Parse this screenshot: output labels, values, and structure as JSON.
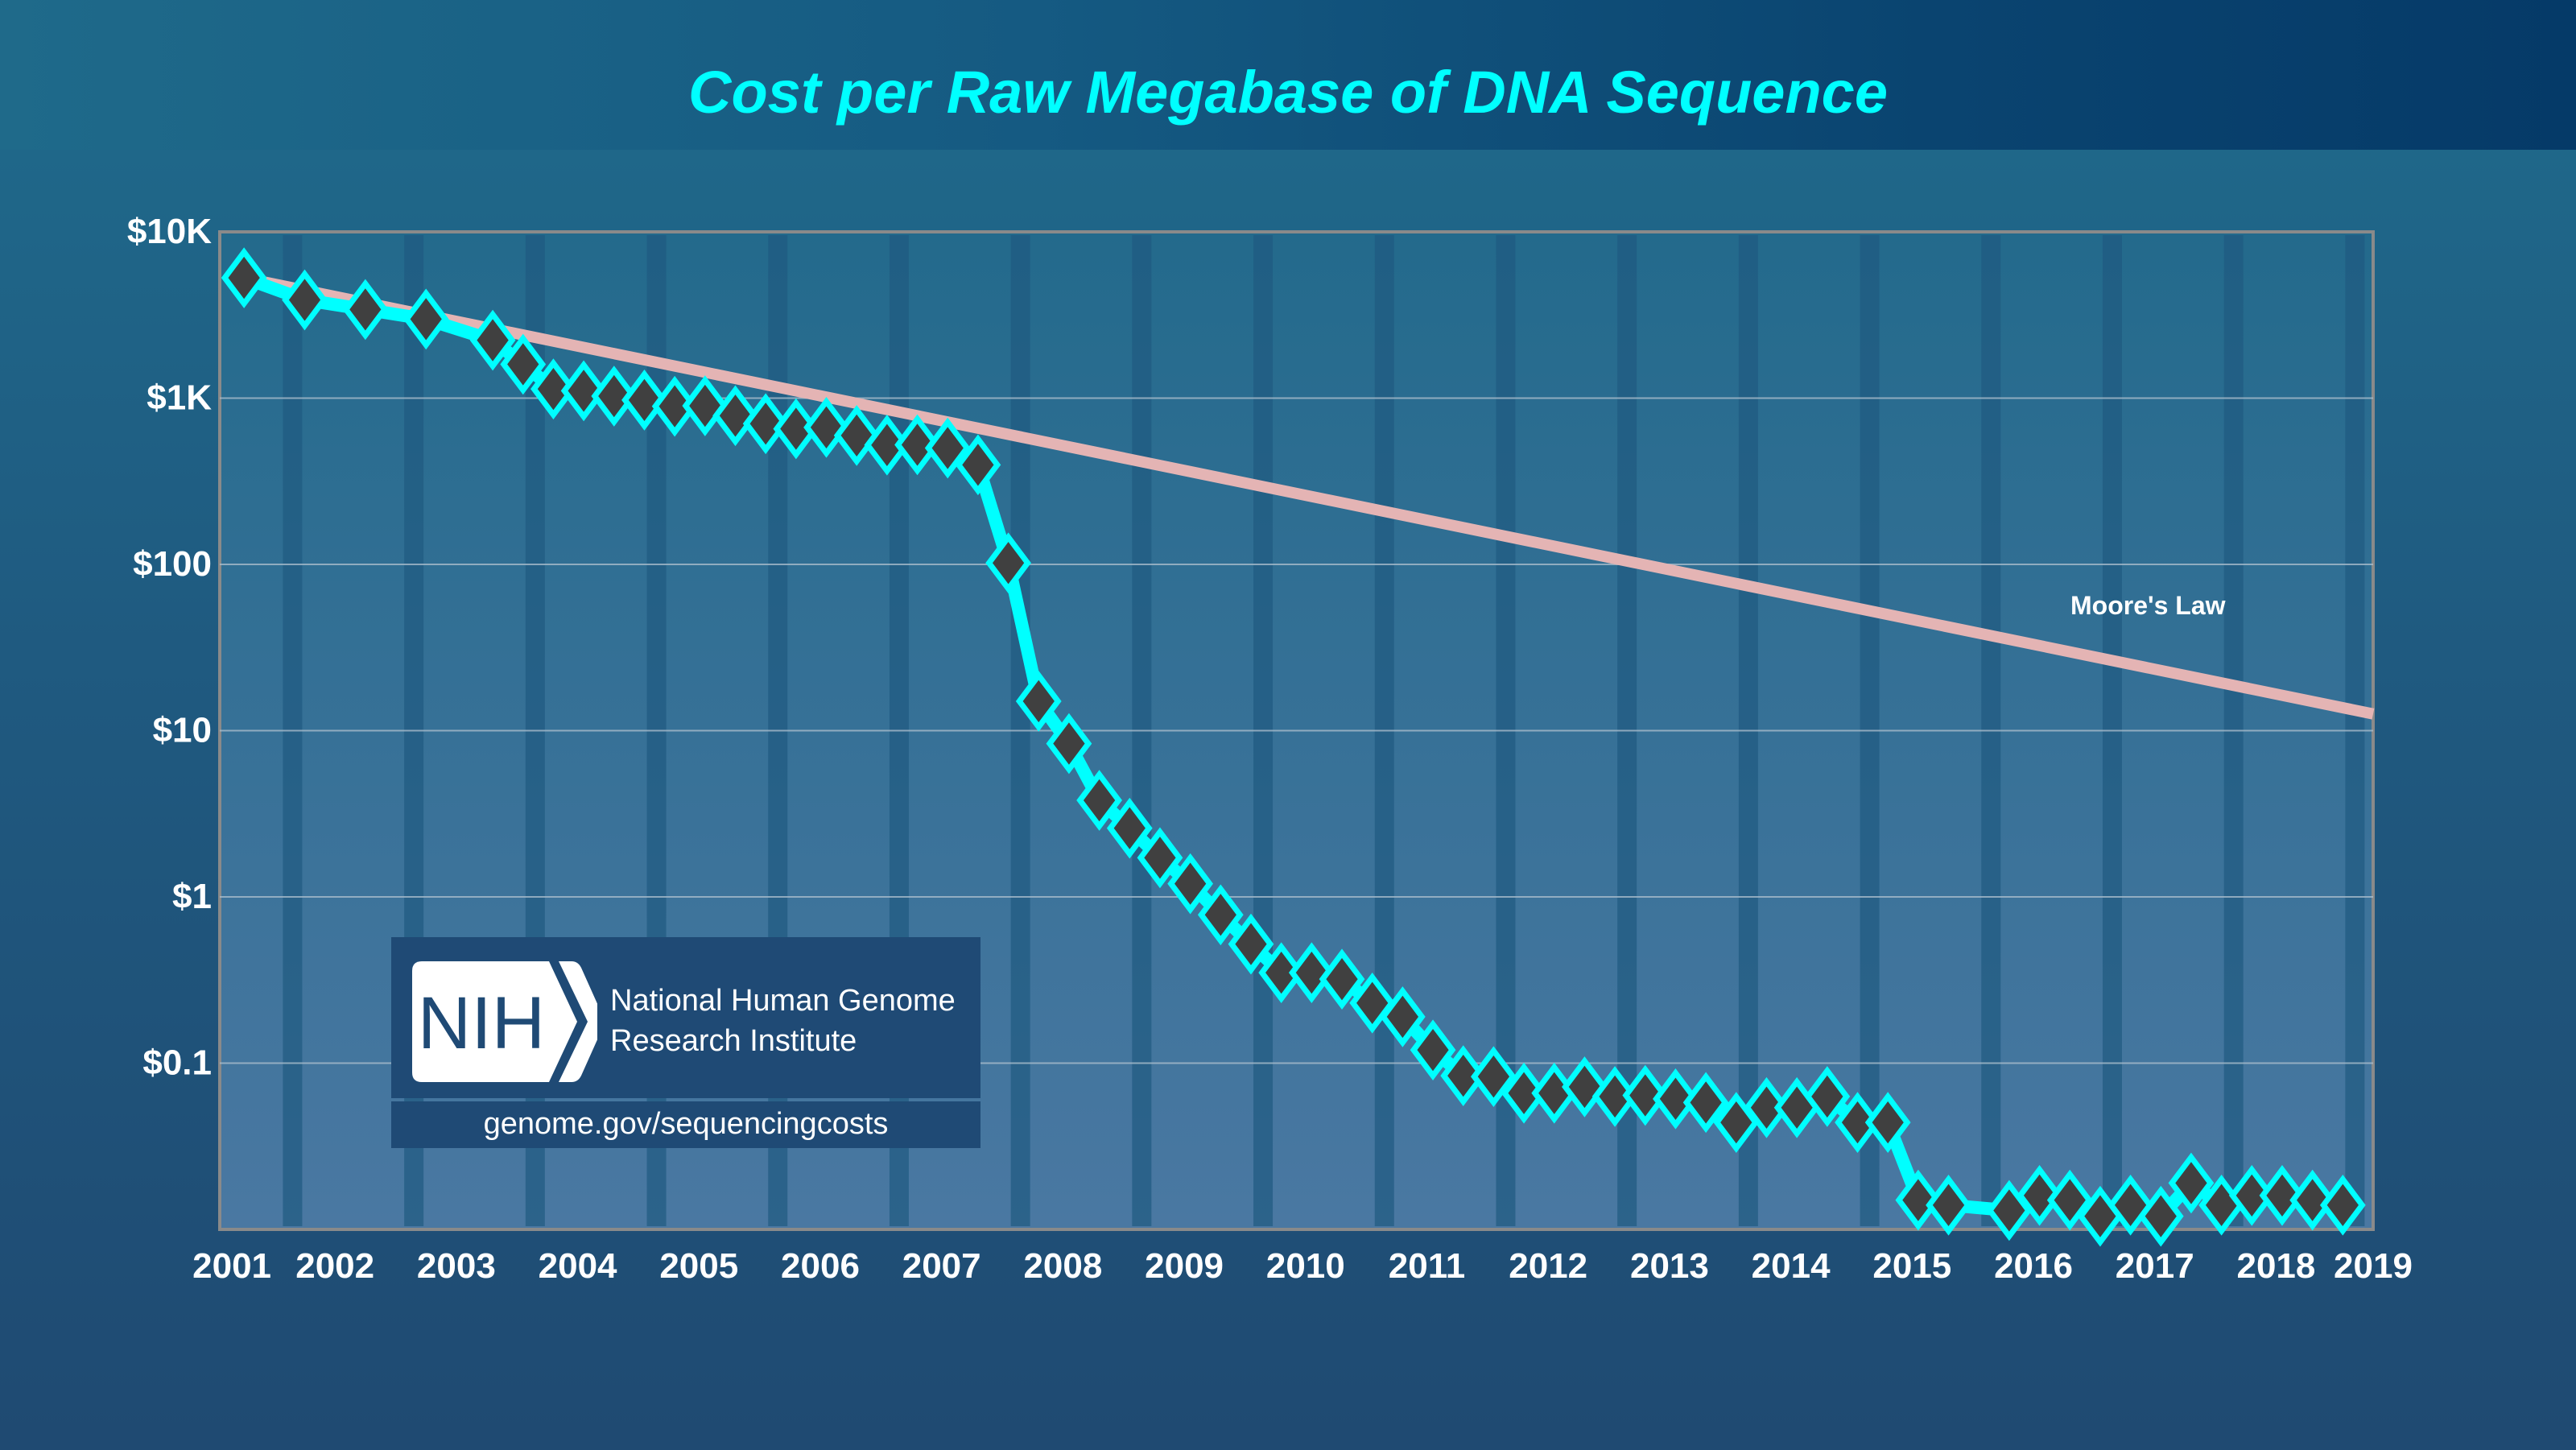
{
  "title": "Cost per Raw Megabase of DNA Sequence",
  "moore_label": "Moore's Law",
  "logo": {
    "acronym": "NIH",
    "name_line1": "National Human Genome",
    "name_line2": "Research Institute",
    "url": "genome.gov/sequencingcosts"
  },
  "colors": {
    "series": "#00ffff",
    "marker_fill": "#404040",
    "moore": "#e4b4b4",
    "title": "#00ffff"
  },
  "chart_data": {
    "type": "line",
    "title": "Cost per Raw Megabase of DNA Sequence",
    "xlabel": "",
    "ylabel": "",
    "yscale": "log",
    "ylim": [
      0.01,
      10000
    ],
    "xlim": [
      2001.5,
      2019.25
    ],
    "grid": true,
    "y_ticks": [
      {
        "value": 10000,
        "label": "$10K"
      },
      {
        "value": 1000,
        "label": "$1K"
      },
      {
        "value": 100,
        "label": "$100"
      },
      {
        "value": 10,
        "label": "$10"
      },
      {
        "value": 1,
        "label": "$1"
      },
      {
        "value": 0.1,
        "label": "$0.1"
      }
    ],
    "x_ticks": [
      {
        "value": 2001.6,
        "label": "2001"
      },
      {
        "value": 2002.45,
        "label": "2002"
      },
      {
        "value": 2003.45,
        "label": "2003"
      },
      {
        "value": 2004.45,
        "label": "2004"
      },
      {
        "value": 2005.45,
        "label": "2005"
      },
      {
        "value": 2006.45,
        "label": "2006"
      },
      {
        "value": 2007.45,
        "label": "2007"
      },
      {
        "value": 2008.45,
        "label": "2008"
      },
      {
        "value": 2009.45,
        "label": "2009"
      },
      {
        "value": 2010.45,
        "label": "2010"
      },
      {
        "value": 2011.45,
        "label": "2011"
      },
      {
        "value": 2012.45,
        "label": "2012"
      },
      {
        "value": 2013.45,
        "label": "2013"
      },
      {
        "value": 2014.45,
        "label": "2014"
      },
      {
        "value": 2015.45,
        "label": "2015"
      },
      {
        "value": 2016.45,
        "label": "2016"
      },
      {
        "value": 2017.45,
        "label": "2017"
      },
      {
        "value": 2018.45,
        "label": "2018"
      },
      {
        "value": 2019.25,
        "label": "2019"
      }
    ],
    "series": [
      {
        "name": "Cost per Raw Megabase",
        "x": [
          2001.7,
          2002.2,
          2002.7,
          2003.2,
          2003.75,
          2004.0,
          2004.25,
          2004.5,
          2004.75,
          2005.0,
          2005.25,
          2005.5,
          2005.75,
          2006.0,
          2006.25,
          2006.5,
          2006.75,
          2007.0,
          2007.25,
          2007.5,
          2007.75,
          2008.0,
          2008.25,
          2008.5,
          2008.75,
          2009.0,
          2009.25,
          2009.5,
          2009.75,
          2010.0,
          2010.25,
          2010.5,
          2010.75,
          2011.0,
          2011.25,
          2011.5,
          2011.75,
          2012.0,
          2012.25,
          2012.5,
          2012.75,
          2013.0,
          2013.25,
          2013.5,
          2013.75,
          2014.0,
          2014.25,
          2014.5,
          2014.75,
          2015.0,
          2015.25,
          2015.5,
          2015.75,
          2016.25,
          2016.5,
          2016.75,
          2017.0,
          2017.25,
          2017.5,
          2017.75,
          2018.0,
          2018.25,
          2018.5,
          2018.75,
          2019.0
        ],
        "values": [
          5292,
          3898,
          3413,
          2986,
          2230,
          1598,
          1135,
          1107,
          1028,
          974,
          893,
          899,
          784,
          702,
          654,
          667,
          596,
          522,
          524,
          501,
          397,
          102,
          15.03,
          8.36,
          3.81,
          2.59,
          1.72,
          1.2,
          0.78,
          0.52,
          0.35,
          0.35,
          0.32,
          0.23,
          0.19,
          0.12,
          0.084,
          0.083,
          0.066,
          0.066,
          0.072,
          0.063,
          0.064,
          0.061,
          0.058,
          0.044,
          0.054,
          0.054,
          0.063,
          0.044,
          0.044,
          0.015,
          0.014,
          0.013,
          0.016,
          0.015,
          0.012,
          0.014,
          0.012,
          0.019,
          0.014,
          0.016,
          0.016,
          0.015,
          0.014
        ]
      },
      {
        "name": "Moore's Law",
        "x": [
          2001.7,
          2019.25
        ],
        "values": [
          5292,
          12.6
        ]
      }
    ]
  }
}
